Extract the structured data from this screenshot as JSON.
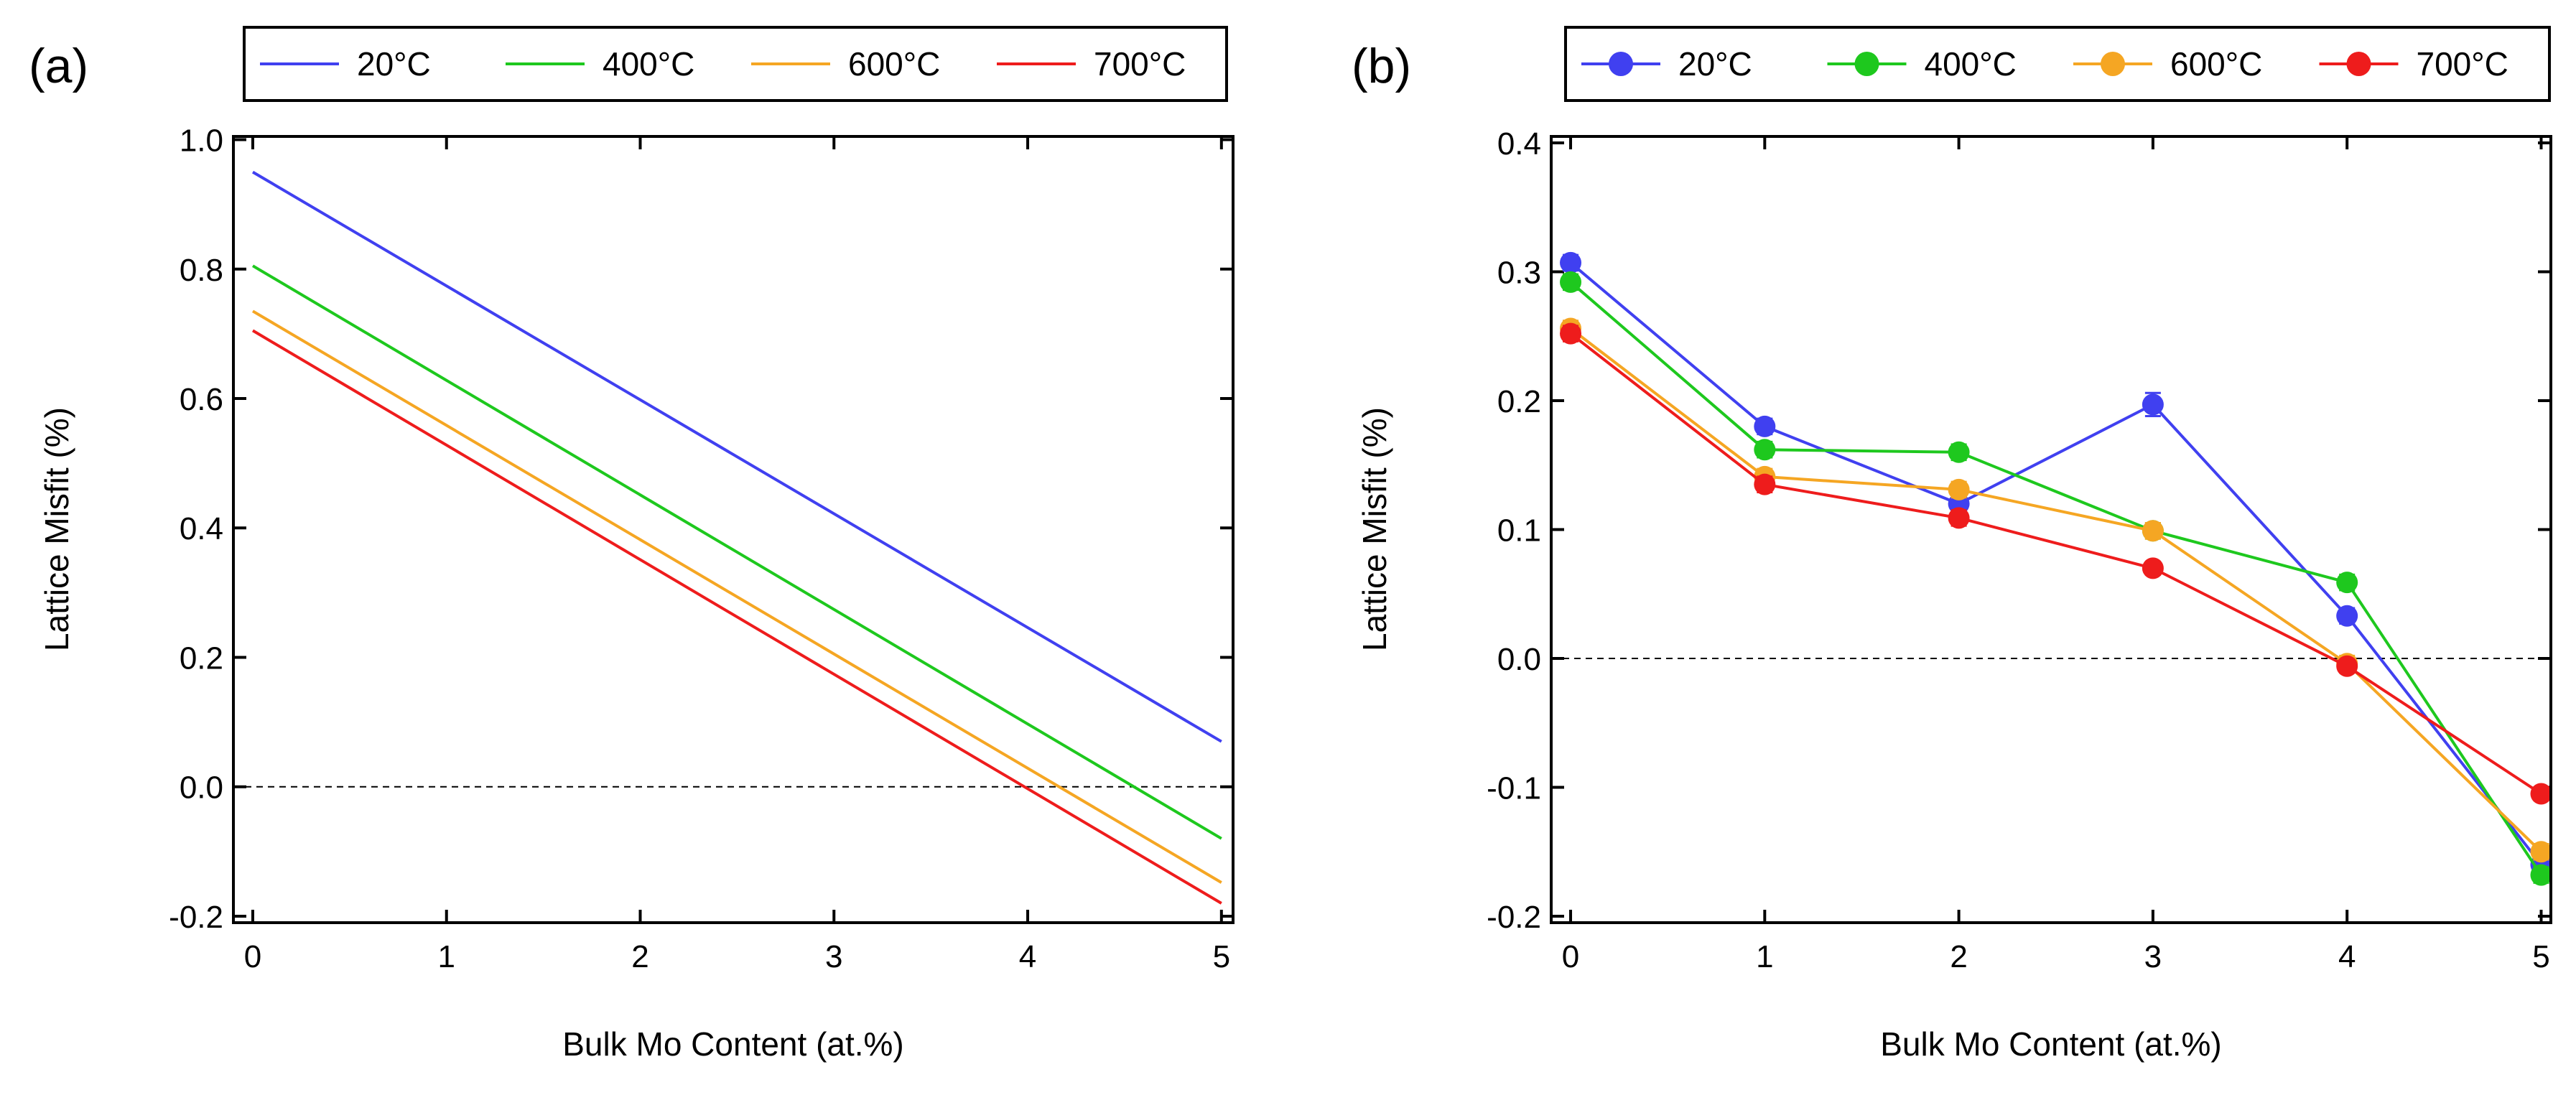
{
  "chart_data": [
    {
      "type": "line",
      "panel_label": "(a)",
      "xlabel": "Bulk Mo Content (at.%)",
      "ylabel": "Lattice Misfit (%)",
      "xlim": [
        -0.1,
        5.06
      ],
      "ylim": [
        -0.21,
        1.005
      ],
      "xticks": [
        0,
        1,
        2,
        3,
        4,
        5
      ],
      "xtick_labels": [
        "0",
        "1",
        "2",
        "3",
        "4",
        "5"
      ],
      "yticks": [
        -0.2,
        0.0,
        0.2,
        0.4,
        0.6,
        0.8,
        1.0
      ],
      "ytick_labels": [
        "-0.2",
        "0.0",
        "0.2",
        "0.4",
        "0.6",
        "0.8",
        "1.0"
      ],
      "zero_line": true,
      "legend_position": "top",
      "series": [
        {
          "name": "20°C",
          "color": "#4040f0",
          "x": [
            0,
            5
          ],
          "y": [
            0.95,
            0.07
          ]
        },
        {
          "name": "400°C",
          "color": "#1ec81e",
          "x": [
            0,
            5
          ],
          "y": [
            0.805,
            -0.08
          ]
        },
        {
          "name": "600°C",
          "color": "#f5a623",
          "x": [
            0,
            5
          ],
          "y": [
            0.735,
            -0.148
          ]
        },
        {
          "name": "700°C",
          "color": "#ee1c1c",
          "x": [
            0,
            5
          ],
          "y": [
            0.705,
            -0.18
          ]
        }
      ]
    },
    {
      "type": "line",
      "panel_label": "(b)",
      "markers": true,
      "xlabel": "Bulk Mo Content (at.%)",
      "ylabel": "Lattice Misfit (%)",
      "xlim": [
        -0.1,
        5.05
      ],
      "ylim": [
        -0.205,
        0.405
      ],
      "xticks": [
        0,
        1,
        2,
        3,
        4,
        5
      ],
      "xtick_labels": [
        "0",
        "1",
        "2",
        "3",
        "4",
        "5"
      ],
      "yticks": [
        -0.2,
        -0.1,
        0.0,
        0.1,
        0.2,
        0.3,
        0.4
      ],
      "ytick_labels": [
        "-0.2",
        "-0.1",
        "0.0",
        "0.1",
        "0.2",
        "0.3",
        "0.4"
      ],
      "zero_line": true,
      "legend_position": "top",
      "series": [
        {
          "name": "20°C",
          "color": "#4040f0",
          "x": [
            0,
            1,
            2,
            3,
            4,
            5
          ],
          "y": [
            0.307,
            0.18,
            0.12,
            0.197,
            0.033,
            -0.16
          ],
          "err": [
            0.006,
            0.006,
            0.006,
            0.009,
            0.006,
            0.006
          ]
        },
        {
          "name": "400°C",
          "color": "#1ec81e",
          "x": [
            0,
            1,
            2,
            3,
            4,
            5
          ],
          "y": [
            0.292,
            0.162,
            0.16,
            0.099,
            0.059,
            -0.168
          ],
          "err": [
            0.006,
            0.006,
            0.006,
            0.006,
            0.006,
            0.006
          ]
        },
        {
          "name": "600°C",
          "color": "#f5a623",
          "x": [
            0,
            1,
            2,
            3,
            4,
            5
          ],
          "y": [
            0.256,
            0.141,
            0.131,
            0.099,
            -0.004,
            -0.15
          ],
          "err": [
            0.006,
            0.006,
            0.006,
            0.006,
            0.006,
            0.006
          ]
        },
        {
          "name": "700°C",
          "color": "#ee1c1c",
          "x": [
            0,
            1,
            2,
            3,
            4,
            5
          ],
          "y": [
            0.252,
            0.135,
            0.109,
            0.07,
            -0.006,
            -0.105
          ],
          "err": [
            0.006,
            0.006,
            0.006,
            0.005,
            0.005,
            0.005
          ]
        }
      ]
    }
  ]
}
